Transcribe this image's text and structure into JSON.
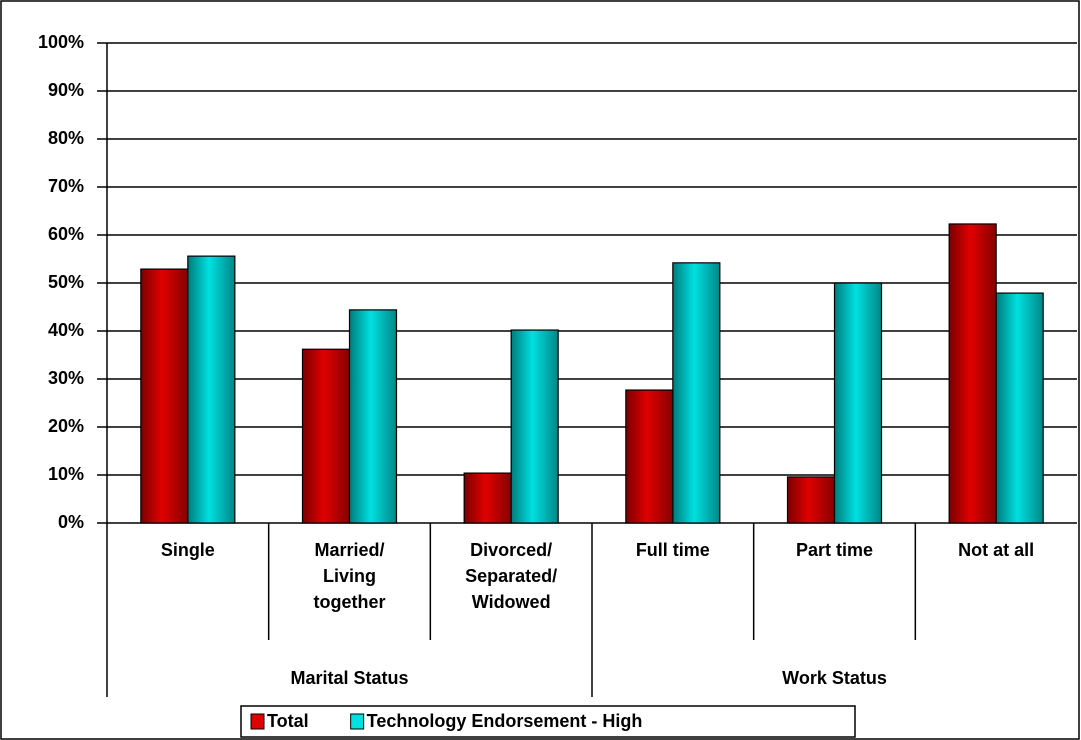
{
  "chart_data": {
    "type": "bar",
    "categories": [
      "Single",
      "Married/ Living together",
      "Divorced/ Separated/ Widowed",
      "Full time",
      "Part time",
      "Not at all"
    ],
    "groups": [
      {
        "name": "Marital Status",
        "span": 3
      },
      {
        "name": "Work Status",
        "span": 3
      }
    ],
    "series": [
      {
        "name": "Total",
        "color": "#e00000",
        "values": [
          52.9,
          36.2,
          10.4,
          27.7,
          9.6,
          62.3
        ]
      },
      {
        "name": "Technology Endorsement - High",
        "color": "#00e0e0",
        "values": [
          55.6,
          44.4,
          40.2,
          54.2,
          50.0,
          47.9
        ]
      }
    ],
    "ylim": [
      0,
      100
    ],
    "yticks": [
      {
        "value": 0,
        "label": "0%"
      },
      {
        "value": 10,
        "label": "10%"
      },
      {
        "value": 20,
        "label": "20%"
      },
      {
        "value": 30,
        "label": "30%"
      },
      {
        "value": 40,
        "label": "40%"
      },
      {
        "value": 50,
        "label": "50%"
      },
      {
        "value": 60,
        "label": "60%"
      },
      {
        "value": 70,
        "label": "70%"
      },
      {
        "value": 80,
        "label": "80%"
      },
      {
        "value": 90,
        "label": "90%"
      },
      {
        "value": 100,
        "label": "100%"
      }
    ],
    "grid": true,
    "legend": "bottom"
  }
}
